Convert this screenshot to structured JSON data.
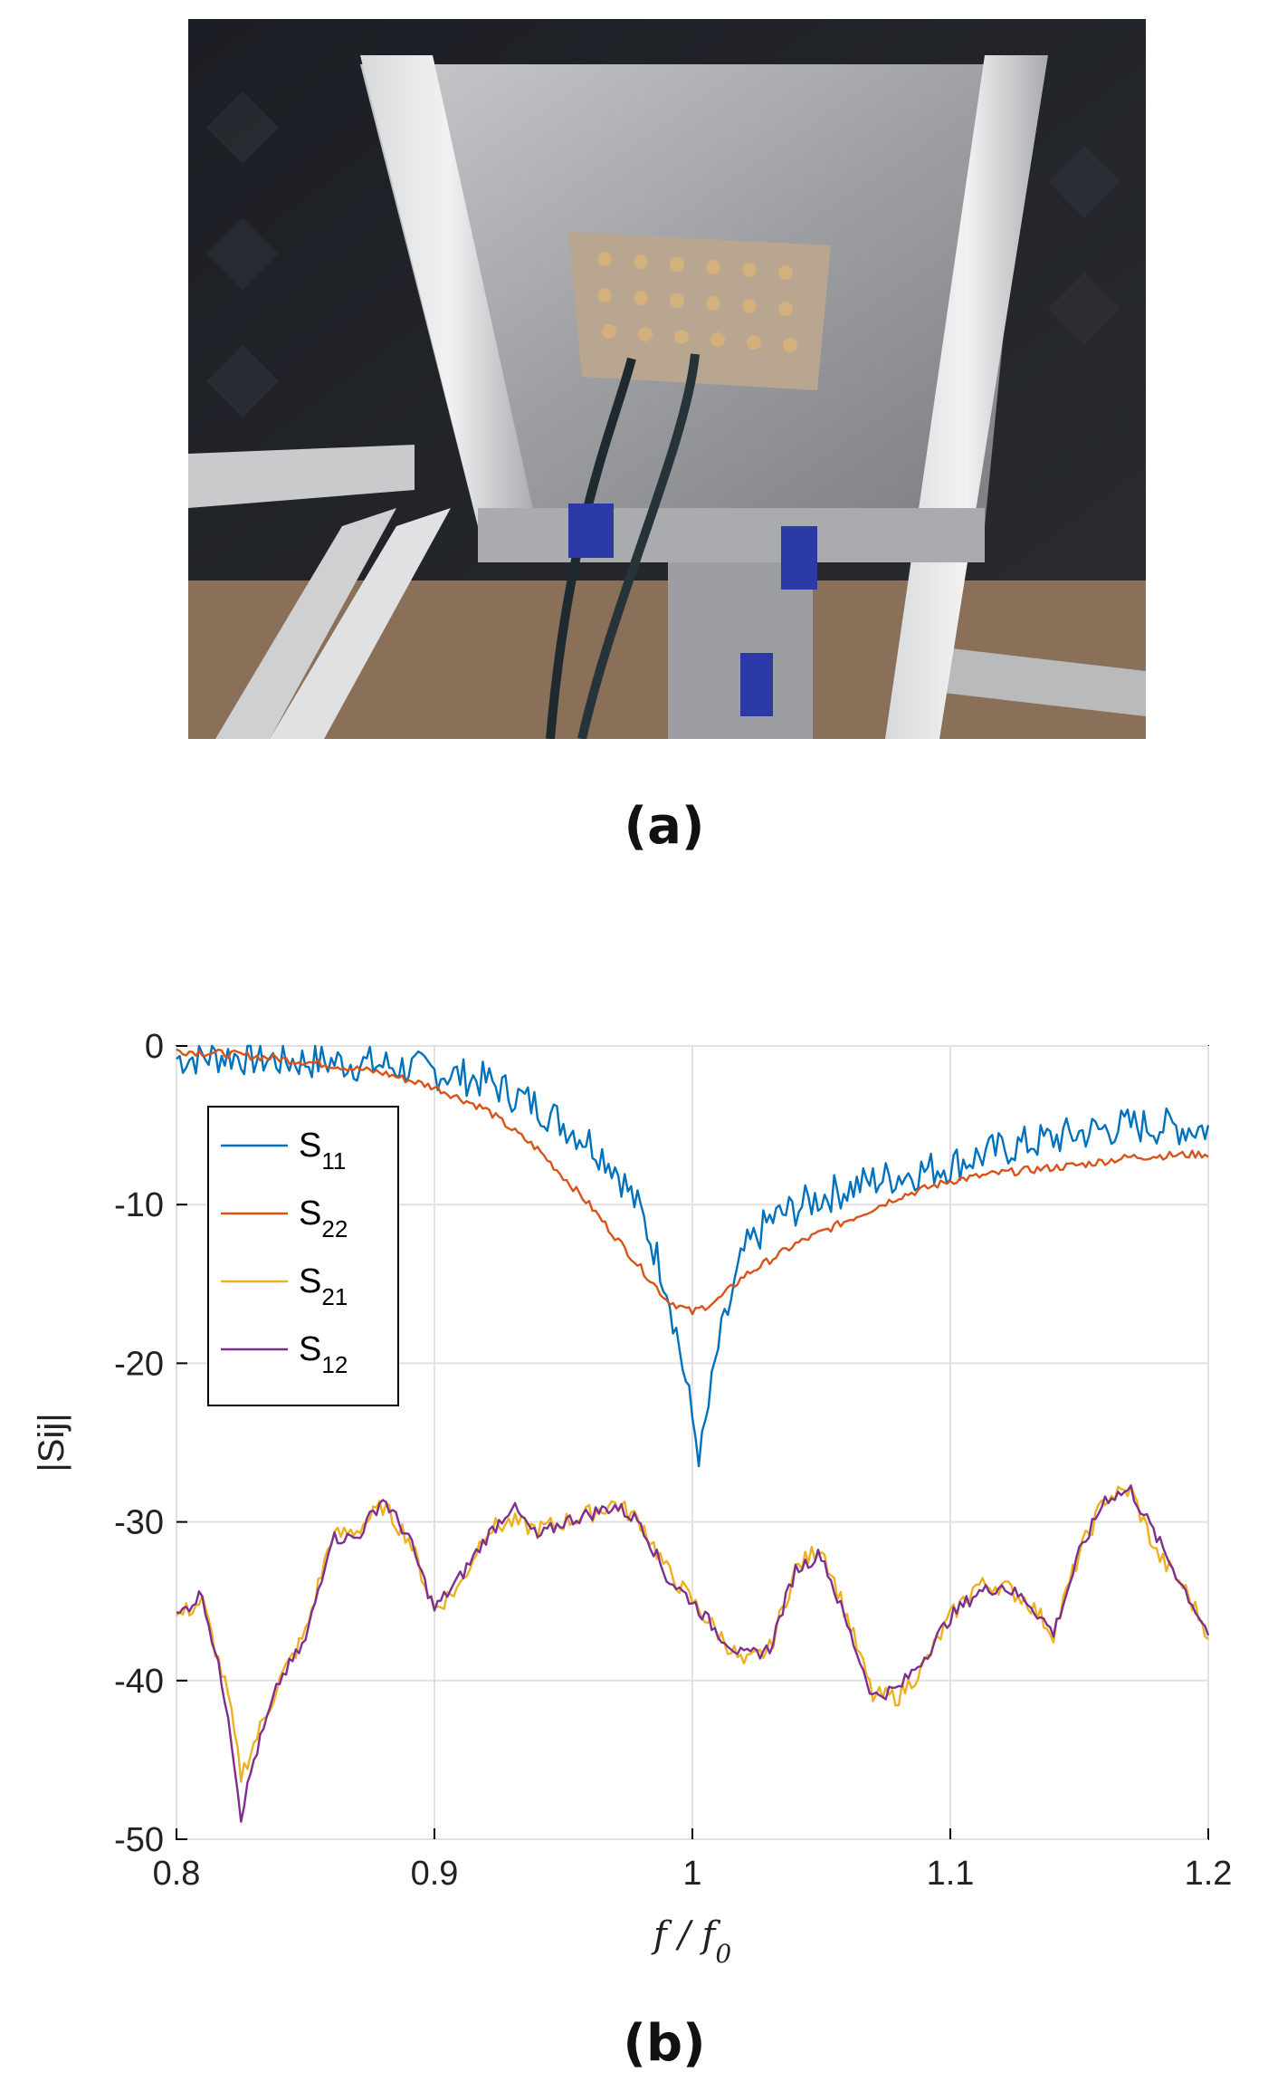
{
  "figure": {
    "caption_a": "(a)",
    "caption_b": "(b)",
    "photo": {
      "icon": "antenna-array-photo"
    }
  },
  "chart_data": {
    "type": "line",
    "xlabel_main": "f",
    "xlabel_sep": " / ",
    "xlabel_sub_base": "f",
    "xlabel_sub_index": "0",
    "ylabel": "|Sij|",
    "xlim": [
      0.8,
      1.2
    ],
    "ylim": [
      -50,
      0
    ],
    "xticks": [
      0.8,
      0.9,
      1,
      1.1,
      1.2
    ],
    "xtick_labels": [
      "0.8",
      "0.9",
      "1",
      "1.1",
      "1.2"
    ],
    "yticks": [
      0,
      -10,
      -20,
      -30,
      -40,
      -50
    ],
    "ytick_labels": [
      "0",
      "-10",
      "-20",
      "-30",
      "-40",
      "-50"
    ],
    "grid": true,
    "legend_position": "top-left",
    "series": [
      {
        "name_base": "S",
        "name_sub": "11",
        "color": "#0072BD",
        "x": [
          0.8,
          0.82,
          0.84,
          0.86,
          0.88,
          0.9,
          0.92,
          0.94,
          0.96,
          0.97,
          0.98,
          0.99,
          0.995,
          1.0,
          1.003,
          1.01,
          1.02,
          1.03,
          1.05,
          1.07,
          1.1,
          1.12,
          1.15,
          1.17,
          1.2
        ],
        "y": [
          -0.8,
          -0.6,
          -0.9,
          -1.0,
          -1.2,
          -1.6,
          -2.2,
          -3.8,
          -6.0,
          -7.6,
          -10.5,
          -15.0,
          -19.0,
          -23.5,
          -26.0,
          -19.0,
          -13.0,
          -11.0,
          -9.5,
          -8.5,
          -7.5,
          -6.5,
          -5.5,
          -5.0,
          -5.2
        ]
      },
      {
        "name_base": "S",
        "name_sub": "22",
        "color": "#D95319",
        "x": [
          0.8,
          0.82,
          0.84,
          0.86,
          0.88,
          0.9,
          0.92,
          0.94,
          0.96,
          0.98,
          0.99,
          1.0,
          1.01,
          1.02,
          1.04,
          1.06,
          1.08,
          1.1,
          1.12,
          1.15,
          1.17,
          1.2
        ],
        "y": [
          -0.3,
          -0.5,
          -0.8,
          -1.2,
          -1.7,
          -2.6,
          -4.0,
          -6.5,
          -10.0,
          -14.0,
          -16.0,
          -16.8,
          -16.0,
          -14.5,
          -12.5,
          -11.0,
          -9.5,
          -8.5,
          -8.0,
          -7.5,
          -7.0,
          -6.8
        ]
      },
      {
        "name_base": "S",
        "name_sub": "21",
        "color": "#EDB120",
        "x": [
          0.8,
          0.81,
          0.82,
          0.825,
          0.83,
          0.84,
          0.85,
          0.86,
          0.87,
          0.88,
          0.89,
          0.9,
          0.91,
          0.92,
          0.93,
          0.94,
          0.95,
          0.96,
          0.97,
          0.98,
          0.99,
          1.0,
          1.01,
          1.02,
          1.03,
          1.04,
          1.05,
          1.06,
          1.07,
          1.08,
          1.09,
          1.1,
          1.11,
          1.12,
          1.13,
          1.14,
          1.15,
          1.16,
          1.17,
          1.18,
          1.19,
          1.2
        ],
        "y": [
          -36,
          -35,
          -41,
          -46,
          -44,
          -40,
          -37,
          -31,
          -30.5,
          -29,
          -31,
          -35.5,
          -34,
          -30.5,
          -30,
          -30.5,
          -30,
          -29.5,
          -28.8,
          -30,
          -33,
          -35,
          -37,
          -39,
          -38,
          -33,
          -31.5,
          -36,
          -41,
          -41,
          -39,
          -36,
          -34,
          -34,
          -35,
          -37,
          -32,
          -28.5,
          -28,
          -32,
          -34,
          -37
        ]
      },
      {
        "name_base": "S",
        "name_sub": "12",
        "color": "#7E2F8E",
        "x": [
          0.8,
          0.81,
          0.82,
          0.825,
          0.83,
          0.84,
          0.85,
          0.86,
          0.87,
          0.88,
          0.89,
          0.9,
          0.91,
          0.92,
          0.93,
          0.94,
          0.95,
          0.96,
          0.97,
          0.98,
          0.99,
          1.0,
          1.01,
          1.02,
          1.03,
          1.04,
          1.05,
          1.06,
          1.07,
          1.08,
          1.09,
          1.1,
          1.11,
          1.12,
          1.13,
          1.14,
          1.15,
          1.16,
          1.17,
          1.18,
          1.19,
          1.2
        ],
        "y": [
          -36,
          -34.5,
          -42,
          -48.5,
          -45,
          -40,
          -37.5,
          -31,
          -31,
          -28.5,
          -31,
          -35.5,
          -33.5,
          -31,
          -29,
          -31,
          -30,
          -29.5,
          -29,
          -30,
          -33.5,
          -35,
          -37,
          -38.5,
          -38,
          -33,
          -32,
          -36.5,
          -41,
          -40.5,
          -38.5,
          -36,
          -34.5,
          -34,
          -35,
          -37,
          -32,
          -28.5,
          -28,
          -31,
          -34,
          -37
        ]
      }
    ]
  }
}
